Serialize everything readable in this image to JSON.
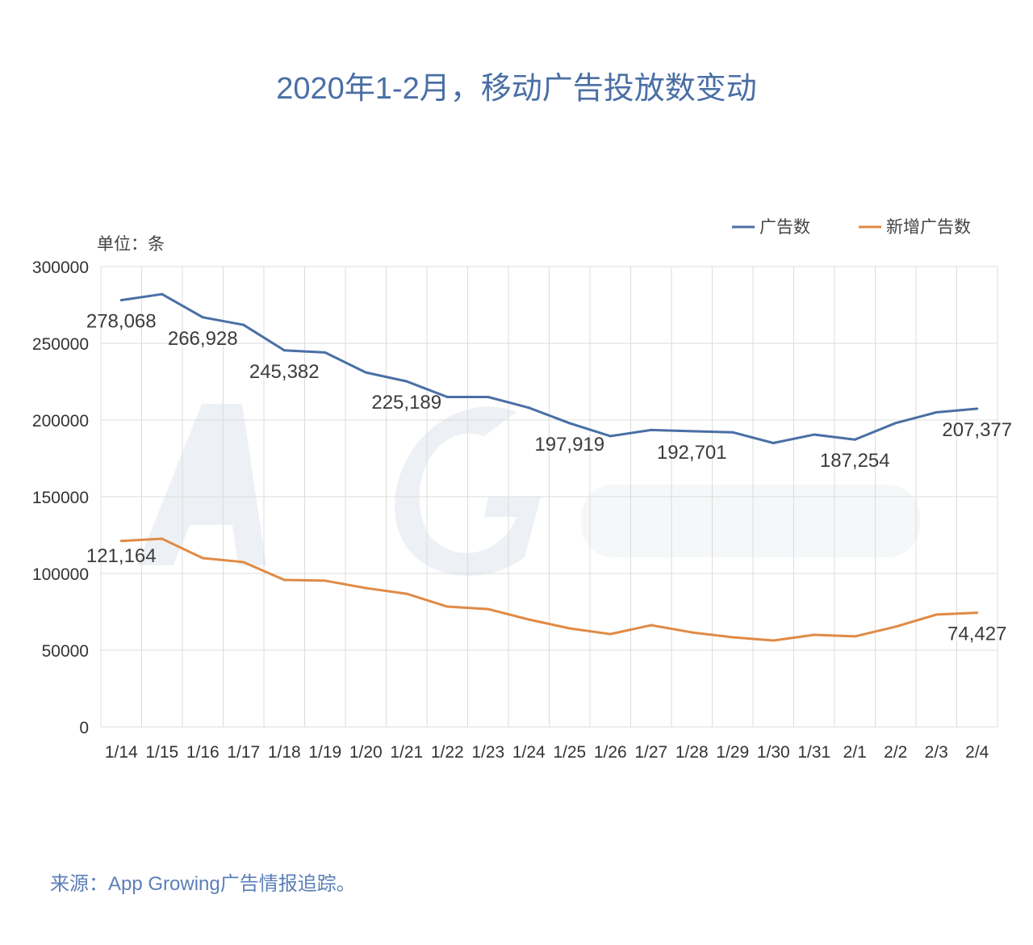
{
  "title": "2020年1-2月，移动广告投放数变动",
  "source": "来源：App Growing广告情报追踪。",
  "watermark": "App Growing",
  "chart_data": {
    "type": "line",
    "title": "2020年1-2月，移动广告投放数变动",
    "unit_label": "单位：条",
    "categories": [
      "1/14",
      "1/15",
      "1/16",
      "1/17",
      "1/18",
      "1/19",
      "1/20",
      "1/21",
      "1/22",
      "1/23",
      "1/24",
      "1/25",
      "1/26",
      "1/27",
      "1/28",
      "1/29",
      "1/30",
      "1/31",
      "2/1",
      "2/2",
      "2/3",
      "2/4"
    ],
    "ylim": [
      0,
      300000
    ],
    "yticks": [
      0,
      50000,
      100000,
      150000,
      200000,
      250000,
      300000
    ],
    "grid": true,
    "legend": "top-right",
    "series": [
      {
        "name": "广告数",
        "color": "#4a6fa5",
        "values": [
          278068,
          282000,
          266928,
          262000,
          245382,
          244000,
          231000,
          225189,
          215000,
          215000,
          208000,
          197919,
          189500,
          193500,
          192701,
          192000,
          185000,
          190500,
          187254,
          198000,
          205000,
          207377
        ],
        "labels": {
          "0": "278,068",
          "2": "266,928",
          "4": "245,382",
          "7": "225,189",
          "11": "197,919",
          "14": "192,701",
          "18": "187,254",
          "21": "207,377"
        }
      },
      {
        "name": "新增广告数",
        "color": "#e08a45",
        "values": [
          121164,
          122600,
          110000,
          107400,
          95800,
          95300,
          90500,
          86800,
          78400,
          76800,
          70000,
          64200,
          60500,
          66300,
          61600,
          58400,
          56300,
          60000,
          59000,
          65300,
          73200,
          74427
        ],
        "labels": {
          "0": "121,164",
          "21": "74,427"
        }
      }
    ]
  }
}
